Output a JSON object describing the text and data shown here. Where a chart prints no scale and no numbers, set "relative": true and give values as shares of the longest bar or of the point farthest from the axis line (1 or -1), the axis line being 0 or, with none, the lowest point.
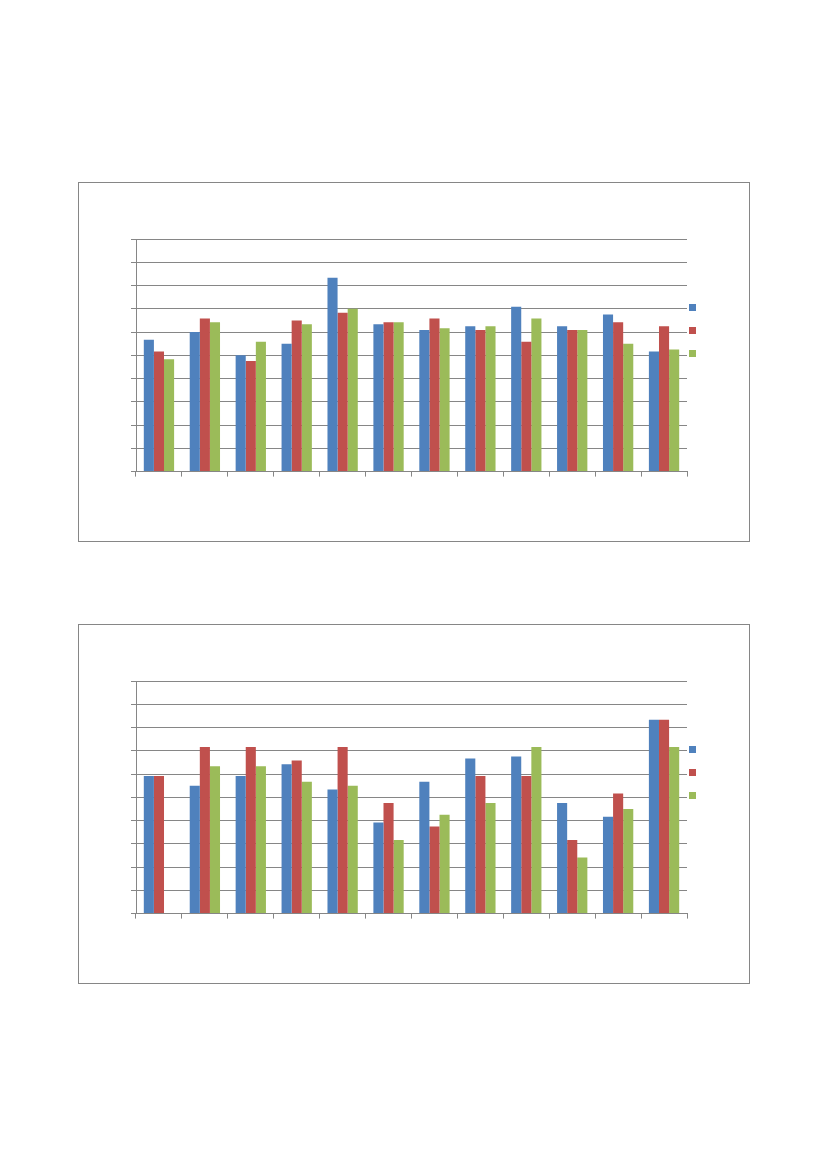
{
  "chart_data": [
    {
      "type": "bar",
      "relative": true,
      "grid": "y",
      "categories": [
        null,
        null,
        null,
        null,
        null,
        null,
        null,
        null,
        null,
        null,
        null,
        null
      ],
      "series": [
        {
          "color": "#4f81bd",
          "values": [
            0.68,
            0.72,
            0.6,
            0.66,
            1,
            0.76,
            0.73,
            0.75,
            0.85,
            0.75,
            0.81,
            0.62
          ]
        },
        {
          "color": "#c0504d",
          "values": [
            0.62,
            0.79,
            0.57,
            0.78,
            0.82,
            0.77,
            0.79,
            0.73,
            0.67,
            0.73,
            0.77,
            0.75
          ]
        },
        {
          "color": "#9bbb59",
          "values": [
            0.58,
            0.77,
            0.67,
            0.76,
            0.84,
            0.77,
            0.74,
            0.75,
            0.79,
            0.73,
            0.66,
            0.63
          ]
        }
      ]
    },
    {
      "type": "bar",
      "relative": true,
      "grid": "y",
      "categories": [
        null,
        null,
        null,
        null,
        null,
        null,
        null,
        null,
        null,
        null,
        null,
        null
      ],
      "series": [
        {
          "color": "#4f81bd",
          "values": [
            0.71,
            0.66,
            0.71,
            0.77,
            0.64,
            0.47,
            0.68,
            0.8,
            0.81,
            0.57,
            0.5,
            1
          ]
        },
        {
          "color": "#c0504d",
          "values": [
            0.71,
            0.86,
            0.86,
            0.79,
            0.86,
            0.57,
            0.45,
            0.71,
            0.71,
            0.38,
            0.62,
            1
          ]
        },
        {
          "color": "#9bbb59",
          "values": [
            0,
            0.76,
            0.76,
            0.68,
            0.66,
            0.38,
            0.51,
            0.57,
            0.86,
            0.29,
            0.54,
            0.86
          ]
        }
      ]
    }
  ]
}
